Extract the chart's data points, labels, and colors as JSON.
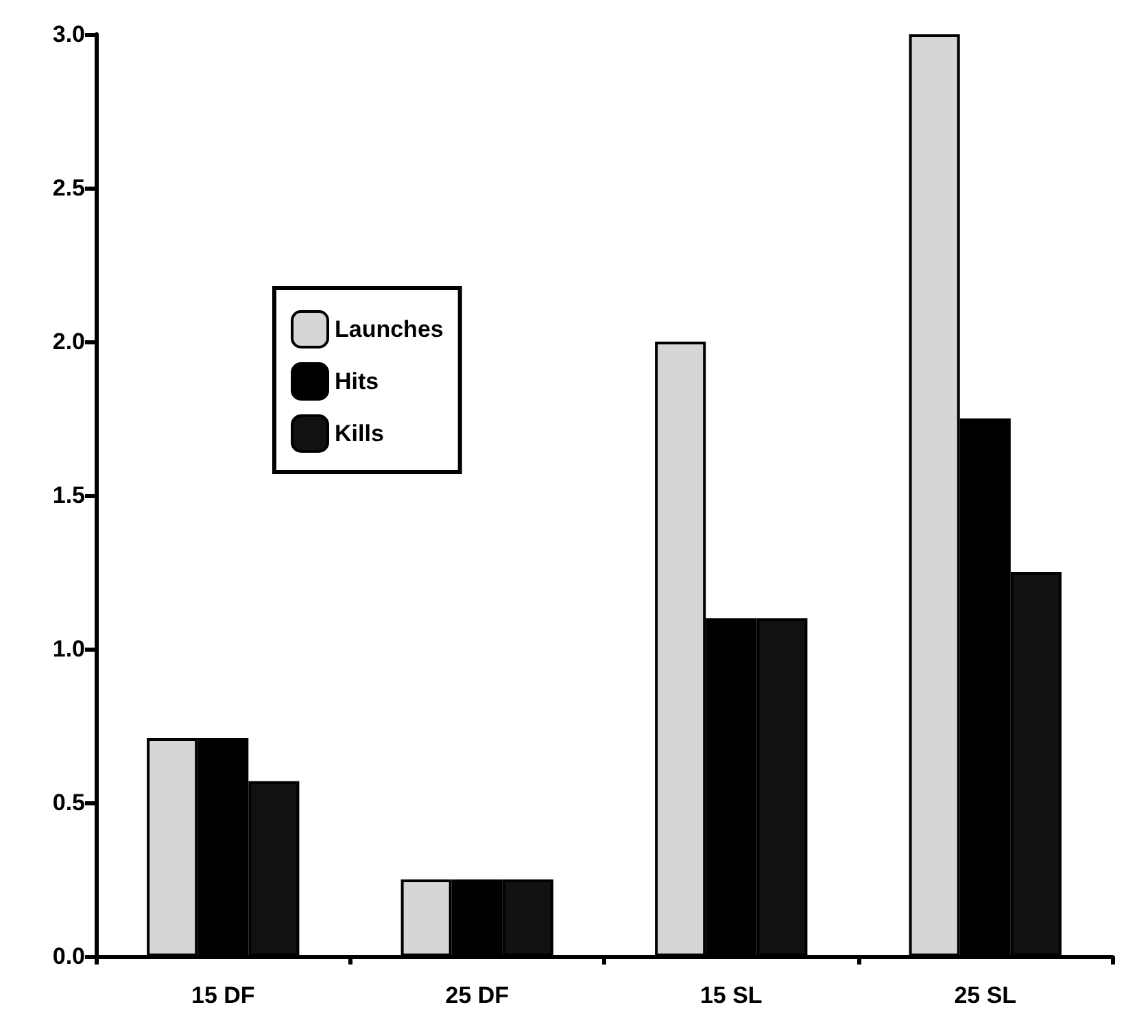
{
  "chart_data": {
    "type": "bar",
    "categories": [
      "15 DF",
      "25 DF",
      "15 SL",
      "25 SL"
    ],
    "series": [
      {
        "name": "Launches",
        "color": "#d6d6d6",
        "values": [
          0.71,
          0.25,
          2.0,
          3.0
        ]
      },
      {
        "name": "Hits",
        "color": "#000000",
        "values": [
          0.71,
          0.25,
          1.1,
          1.75
        ]
      },
      {
        "name": "Kills",
        "color": "#111111",
        "values": [
          0.57,
          0.25,
          1.1,
          1.25
        ]
      }
    ],
    "ylim": [
      0,
      3
    ],
    "yticks": [
      {
        "value": 0,
        "label": "0.0"
      },
      {
        "value": 0.5,
        "label": "0.5"
      },
      {
        "value": 1,
        "label": "1.0"
      },
      {
        "value": 1.5,
        "label": "1.5"
      },
      {
        "value": 2,
        "label": "2.0"
      },
      {
        "value": 2.5,
        "label": "2.5"
      },
      {
        "value": 3,
        "label": "3.0"
      }
    ],
    "grid": false,
    "legend": "top left"
  }
}
